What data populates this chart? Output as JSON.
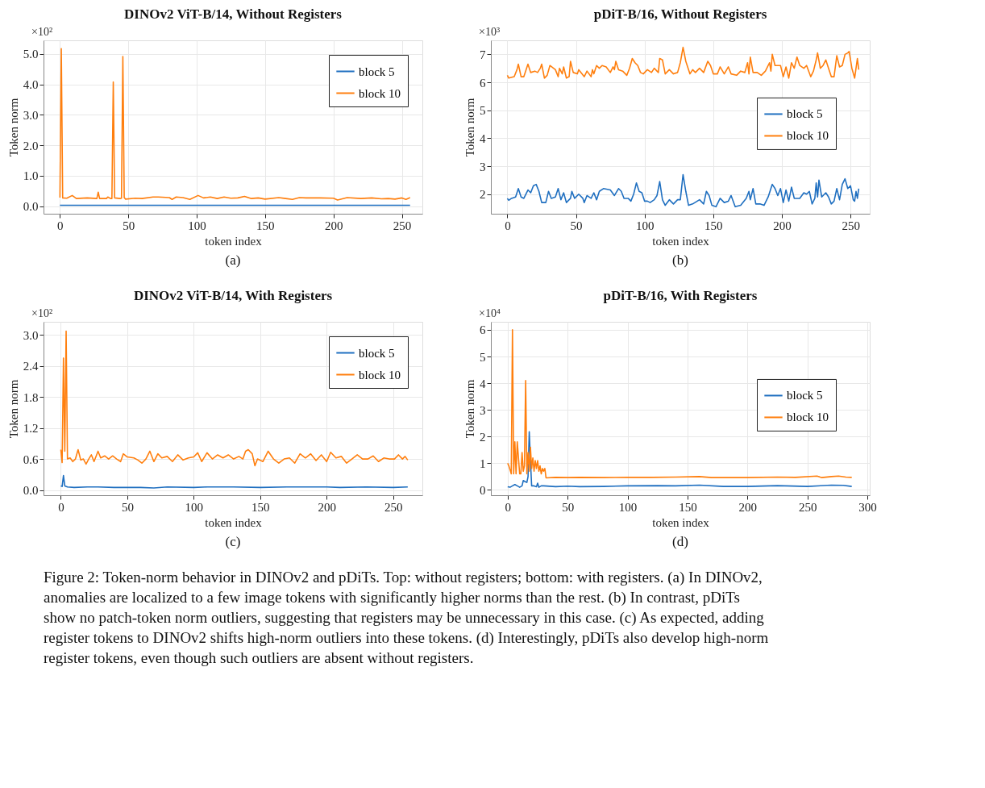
{
  "chart_data": [
    {
      "type": "line",
      "title": "DINOv2 ViT-B/14, Without Registers",
      "xlabel": "token index",
      "ylabel": "Token norm",
      "annotations": [
        "×10²",
        "(a)"
      ],
      "xlim": [
        -12,
        265
      ],
      "xticks": [
        0,
        50,
        100,
        150,
        200,
        250
      ],
      "ylim": [
        -0.25,
        5.45
      ],
      "yticks": [
        {
          "value": 0,
          "label": "0.0"
        },
        {
          "value": 1,
          "label": "1.0"
        },
        {
          "value": 2,
          "label": "2.0"
        },
        {
          "value": 3,
          "label": "3.0"
        },
        {
          "value": 4,
          "label": "4.0"
        },
        {
          "value": 5,
          "label": "5.0"
        }
      ],
      "grid": true,
      "legend": "top right",
      "line_style": "solid",
      "marker": "none",
      "series": [
        {
          "name": "block 5",
          "color": "#1f6fc0",
          "x": [
            0,
            20,
            40,
            60,
            80,
            100,
            120,
            140,
            160,
            180,
            200,
            220,
            240,
            256
          ],
          "values": [
            0.03,
            0.03,
            0.03,
            0.03,
            0.03,
            0.03,
            0.03,
            0.03,
            0.03,
            0.03,
            0.03,
            0.03,
            0.03,
            0.03
          ]
        },
        {
          "name": "block 10",
          "color": "#ff7f0e",
          "x": [
            0,
            1,
            2,
            5,
            9,
            12,
            20,
            27,
            28,
            29,
            34,
            35,
            37,
            38,
            39,
            40,
            44,
            45,
            46,
            47,
            48,
            55,
            60,
            68,
            72,
            80,
            82,
            85,
            90,
            95,
            101,
            105,
            110,
            115,
            120,
            125,
            130,
            135,
            140,
            145,
            150,
            160,
            165,
            170,
            175,
            180,
            190,
            200,
            203,
            210,
            220,
            228,
            235,
            240,
            245,
            250,
            253,
            256
          ],
          "values": [
            0.28,
            5.18,
            0.27,
            0.26,
            0.35,
            0.25,
            0.27,
            0.25,
            0.46,
            0.25,
            0.25,
            0.3,
            0.25,
            0.25,
            4.08,
            0.27,
            0.25,
            0.26,
            4.92,
            0.28,
            0.23,
            0.26,
            0.25,
            0.3,
            0.3,
            0.28,
            0.22,
            0.3,
            0.28,
            0.22,
            0.35,
            0.27,
            0.3,
            0.25,
            0.3,
            0.26,
            0.27,
            0.32,
            0.25,
            0.27,
            0.23,
            0.28,
            0.25,
            0.22,
            0.28,
            0.27,
            0.27,
            0.26,
            0.2,
            0.28,
            0.25,
            0.27,
            0.24,
            0.25,
            0.23,
            0.27,
            0.22,
            0.28
          ]
        }
      ]
    },
    {
      "type": "line",
      "title": "pDiT-B/16, Without Registers",
      "xlabel": "token index",
      "ylabel": "Token norm",
      "annotations": [
        "×10³",
        "(b)"
      ],
      "xlim": [
        -12,
        264
      ],
      "xticks": [
        0,
        50,
        100,
        150,
        200,
        250
      ],
      "ylim": [
        1.3,
        7.5
      ],
      "yticks": [
        2,
        3,
        4,
        5,
        6,
        7
      ],
      "grid": true,
      "legend": "right",
      "line_style": "solid",
      "marker": "none",
      "series": [
        {
          "name": "block 5",
          "color": "#1f6fc0",
          "x": [
            0,
            1,
            3,
            6,
            8,
            10,
            12,
            15,
            17,
            19,
            21,
            23,
            25,
            28,
            30,
            32,
            35,
            37,
            39,
            41,
            43,
            46,
            47,
            49,
            52,
            55,
            56,
            58,
            61,
            63,
            65,
            67,
            70,
            75,
            78,
            81,
            83,
            85,
            88,
            90,
            92,
            94,
            96,
            98,
            100,
            102,
            104,
            107,
            109,
            111,
            113,
            115,
            118,
            121,
            124,
            126,
            128,
            130,
            132,
            135,
            140,
            143,
            145,
            147,
            149,
            152,
            155,
            158,
            161,
            163,
            166,
            170,
            174,
            176,
            177,
            179,
            181,
            184,
            187,
            190,
            193,
            195,
            197,
            199,
            201,
            203,
            205,
            207,
            209,
            213,
            216,
            218,
            220,
            222,
            224,
            225,
            226,
            227,
            229,
            232,
            234,
            236,
            238,
            240,
            242,
            244,
            246,
            248,
            250,
            252,
            253,
            254,
            255,
            256
          ],
          "values": [
            1.85,
            1.78,
            1.85,
            1.9,
            2.2,
            1.9,
            1.85,
            2.15,
            2.05,
            2.3,
            2.35,
            2.1,
            1.7,
            1.7,
            2.1,
            1.85,
            1.9,
            2.2,
            1.8,
            2.05,
            1.7,
            1.85,
            2.1,
            1.85,
            2.0,
            1.85,
            1.7,
            1.95,
            1.85,
            2.05,
            1.8,
            2.1,
            2.2,
            2.15,
            1.95,
            2.2,
            2.1,
            1.85,
            1.85,
            1.75,
            2.0,
            2.4,
            2.1,
            2.05,
            1.75,
            1.75,
            1.7,
            1.8,
            1.95,
            2.45,
            1.8,
            1.6,
            1.8,
            1.65,
            1.8,
            1.8,
            2.7,
            2.1,
            1.6,
            1.65,
            1.8,
            1.65,
            2.1,
            1.95,
            1.6,
            1.55,
            1.85,
            1.7,
            1.75,
            1.95,
            1.55,
            1.6,
            1.85,
            2.1,
            1.8,
            2.2,
            1.65,
            1.65,
            1.6,
            1.9,
            2.35,
            2.2,
            1.95,
            2.2,
            1.7,
            2.15,
            1.75,
            2.25,
            1.85,
            1.85,
            2.05,
            2.0,
            2.1,
            1.65,
            1.85,
            2.4,
            1.9,
            2.5,
            1.9,
            2.05,
            1.9,
            1.65,
            1.75,
            2.2,
            1.8,
            2.35,
            2.55,
            2.2,
            2.3,
            1.8,
            1.75,
            2.1,
            1.85,
            2.2
          ]
        },
        {
          "name": "block 10",
          "color": "#ff7f0e",
          "x": [
            0,
            1,
            5,
            7,
            8,
            10,
            12,
            15,
            17,
            20,
            22,
            24,
            25,
            27,
            29,
            31,
            35,
            37,
            38,
            40,
            41,
            43,
            45,
            46,
            48,
            51,
            52,
            56,
            58,
            61,
            62,
            63,
            65,
            67,
            69,
            72,
            75,
            77,
            78,
            79,
            81,
            84,
            87,
            89,
            91,
            93,
            95,
            97,
            99,
            102,
            105,
            107,
            110,
            111,
            113,
            115,
            118,
            121,
            124,
            126,
            128,
            130,
            133,
            135,
            137,
            140,
            143,
            146,
            148,
            150,
            153,
            155,
            158,
            161,
            163,
            167,
            170,
            173,
            175,
            176,
            177,
            179,
            182,
            185,
            188,
            191,
            192,
            193,
            195,
            197,
            199,
            201,
            203,
            205,
            207,
            209,
            211,
            213,
            216,
            218,
            221,
            223,
            225,
            226,
            228,
            230,
            232,
            234,
            236,
            238,
            240,
            242,
            244,
            246,
            248,
            249,
            251,
            253,
            255,
            256
          ],
          "values": [
            6.25,
            6.15,
            6.2,
            6.45,
            6.65,
            6.2,
            6.2,
            6.65,
            6.35,
            6.4,
            6.35,
            6.5,
            6.65,
            6.15,
            6.25,
            6.6,
            6.45,
            6.2,
            6.5,
            6.3,
            6.55,
            6.15,
            6.2,
            6.75,
            6.35,
            6.3,
            6.45,
            6.2,
            6.4,
            6.2,
            6.45,
            6.3,
            6.6,
            6.5,
            6.6,
            6.55,
            6.35,
            6.55,
            6.45,
            6.75,
            6.45,
            6.4,
            6.25,
            6.5,
            6.85,
            6.7,
            6.6,
            6.35,
            6.3,
            6.45,
            6.35,
            6.5,
            6.35,
            6.85,
            6.8,
            6.3,
            6.45,
            6.3,
            6.35,
            6.7,
            7.25,
            6.75,
            6.3,
            6.45,
            6.35,
            6.5,
            6.35,
            6.75,
            6.6,
            6.3,
            6.3,
            6.55,
            6.3,
            6.55,
            6.3,
            6.25,
            6.4,
            6.35,
            6.7,
            6.3,
            6.9,
            6.35,
            6.35,
            6.25,
            6.4,
            6.7,
            6.4,
            7.0,
            6.6,
            6.6,
            6.6,
            6.2,
            6.55,
            6.15,
            6.7,
            6.5,
            6.9,
            6.6,
            6.5,
            6.6,
            6.2,
            6.4,
            6.8,
            7.05,
            6.5,
            6.6,
            6.8,
            6.5,
            6.2,
            6.2,
            6.95,
            6.55,
            6.6,
            7.0,
            7.05,
            7.1,
            6.5,
            6.15,
            6.85,
            6.45
          ]
        }
      ]
    },
    {
      "type": "line",
      "title": "DINOv2 ViT-B/14, With Registers",
      "xlabel": "token index",
      "ylabel": "Token norm",
      "annotations": [
        "×10²",
        "(c)"
      ],
      "xlim": [
        -13,
        272
      ],
      "xticks": [
        0,
        50,
        100,
        150,
        200,
        250
      ],
      "ylim": [
        -0.1,
        3.25
      ],
      "yticks": [
        {
          "value": 0,
          "label": "0.0"
        },
        {
          "value": 0.6,
          "label": "0.6"
        },
        {
          "value": 1.2,
          "label": "1.2"
        },
        {
          "value": 1.8,
          "label": "1.8"
        },
        {
          "value": 2.4,
          "label": "2.4"
        },
        {
          "value": 3.0,
          "label": "3.0"
        }
      ],
      "grid": true,
      "legend": "top right",
      "line_style": "solid",
      "marker": "none",
      "series": [
        {
          "name": "block 5",
          "color": "#1f6fc0",
          "x": [
            0,
            1,
            2,
            3,
            5,
            10,
            20,
            28,
            40,
            60,
            70,
            80,
            100,
            110,
            130,
            150,
            170,
            190,
            200,
            210,
            230,
            250,
            261
          ],
          "values": [
            0.08,
            0.07,
            0.28,
            0.08,
            0.06,
            0.05,
            0.06,
            0.06,
            0.05,
            0.05,
            0.04,
            0.06,
            0.05,
            0.06,
            0.06,
            0.05,
            0.06,
            0.06,
            0.06,
            0.05,
            0.06,
            0.05,
            0.06
          ]
        },
        {
          "name": "block 10",
          "color": "#ff7f0e",
          "x": [
            0,
            1,
            2,
            3,
            4,
            5,
            7,
            9,
            11,
            13,
            15,
            17,
            19,
            21,
            23,
            25,
            28,
            30,
            33,
            36,
            39,
            42,
            45,
            47,
            50,
            55,
            58,
            61,
            64,
            67,
            70,
            73,
            76,
            80,
            84,
            88,
            92,
            96,
            100,
            103,
            106,
            110,
            114,
            118,
            122,
            126,
            130,
            134,
            137,
            139,
            141,
            144,
            146,
            148,
            152,
            156,
            160,
            164,
            168,
            172,
            176,
            180,
            184,
            188,
            192,
            196,
            200,
            203,
            207,
            211,
            215,
            219,
            223,
            227,
            231,
            235,
            239,
            243,
            247,
            251,
            254,
            257,
            259,
            261
          ],
          "values": [
            0.78,
            0.53,
            2.55,
            0.75,
            3.07,
            0.6,
            0.62,
            0.55,
            0.6,
            0.78,
            0.58,
            0.6,
            0.5,
            0.6,
            0.68,
            0.55,
            0.75,
            0.62,
            0.66,
            0.6,
            0.66,
            0.6,
            0.55,
            0.7,
            0.64,
            0.62,
            0.58,
            0.52,
            0.6,
            0.75,
            0.55,
            0.7,
            0.62,
            0.65,
            0.55,
            0.68,
            0.58,
            0.62,
            0.64,
            0.72,
            0.55,
            0.72,
            0.6,
            0.68,
            0.62,
            0.68,
            0.6,
            0.65,
            0.6,
            0.75,
            0.78,
            0.7,
            0.47,
            0.6,
            0.55,
            0.75,
            0.6,
            0.52,
            0.6,
            0.62,
            0.52,
            0.7,
            0.62,
            0.7,
            0.57,
            0.68,
            0.55,
            0.73,
            0.62,
            0.65,
            0.52,
            0.6,
            0.68,
            0.6,
            0.6,
            0.66,
            0.55,
            0.62,
            0.6,
            0.6,
            0.68,
            0.6,
            0.65,
            0.58
          ]
        }
      ]
    },
    {
      "type": "line",
      "title": "pDiT-B/16, With Registers",
      "xlabel": "token index",
      "ylabel": "Token norm",
      "annotations": [
        "×10⁴",
        "(d)",
        "Figure 2: Token-norm behavior in DINOv2 and pDiTs. Top: without registers; bottom: with registers. (a) In DINOv2, anomalies are localized to a few image tokens with significantly higher norms than the rest. (b) In contrast, pDiTs show no patch-token norm outliers, suggesting that registers may be unnecessary in this case. (c) As expected, adding register tokens to DINOv2 shifts high-norm outliers into these tokens. (d) Interestingly, pDiTs also develop high-norm register tokens, even though such outliers are absent without registers."
      ],
      "xlim": [
        -14,
        302
      ],
      "xticks": [
        0,
        50,
        100,
        150,
        200,
        250,
        300
      ],
      "ylim": [
        -0.2,
        6.3
      ],
      "yticks": [
        0,
        1,
        2,
        3,
        4,
        5,
        6
      ],
      "grid": true,
      "legend": "right",
      "line_style": "solid",
      "marker": "none",
      "series": [
        {
          "name": "block 5",
          "color": "#1f6fc0",
          "x": [
            0,
            2,
            4,
            6,
            8,
            10,
            12,
            13,
            15,
            16,
            17,
            18,
            19,
            20,
            22,
            24,
            25,
            26,
            28,
            30,
            40,
            50,
            60,
            80,
            100,
            125,
            140,
            160,
            180,
            200,
            225,
            250,
            270,
            280,
            287
          ],
          "values": [
            0.12,
            0.1,
            0.15,
            0.2,
            0.15,
            0.1,
            0.15,
            0.35,
            0.3,
            0.28,
            0.5,
            2.18,
            1.1,
            0.15,
            0.15,
            0.12,
            0.25,
            0.1,
            0.15,
            0.15,
            0.12,
            0.14,
            0.12,
            0.13,
            0.15,
            0.16,
            0.15,
            0.18,
            0.13,
            0.13,
            0.16,
            0.13,
            0.18,
            0.17,
            0.13
          ]
        },
        {
          "name": "block 10",
          "color": "#ff7f0e",
          "x": [
            0,
            1,
            3,
            4,
            5,
            6,
            7,
            8,
            10,
            11,
            12,
            13,
            14,
            15,
            16,
            17,
            18,
            19,
            20,
            21,
            22,
            23,
            24,
            25,
            26,
            27,
            28,
            29,
            30,
            31,
            32,
            40,
            50,
            60,
            80,
            100,
            120,
            140,
            160,
            170,
            200,
            225,
            240,
            258,
            262,
            270,
            276,
            282,
            287
          ],
          "values": [
            1.0,
            0.9,
            0.6,
            6.0,
            0.6,
            1.8,
            0.6,
            1.8,
            0.6,
            0.6,
            1.4,
            0.7,
            0.9,
            4.1,
            0.6,
            1.4,
            0.7,
            1.6,
            0.8,
            1.2,
            0.7,
            1.1,
            0.8,
            1.1,
            0.7,
            0.9,
            0.6,
            0.8,
            0.7,
            0.8,
            0.45,
            0.47,
            0.46,
            0.47,
            0.46,
            0.47,
            0.47,
            0.48,
            0.5,
            0.46,
            0.46,
            0.48,
            0.47,
            0.52,
            0.46,
            0.5,
            0.52,
            0.48,
            0.47
          ]
        }
      ]
    }
  ]
}
